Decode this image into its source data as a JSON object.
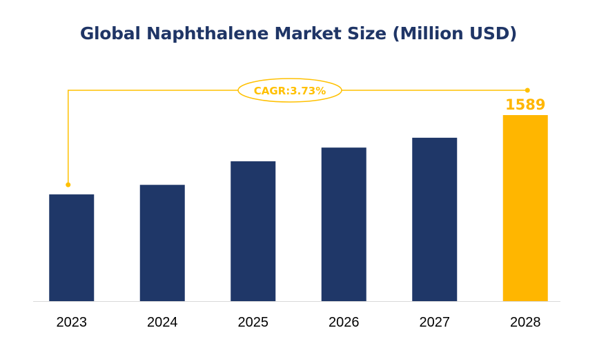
{
  "chart_data": {
    "type": "bar",
    "title": "Global Naphthalene Market Size (Million USD)",
    "categories": [
      "2023",
      "2024",
      "2025",
      "2026",
      "2027",
      "2028"
    ],
    "values": [
      1323,
      1355,
      1434,
      1480,
      1513,
      1589
    ],
    "ylim": [
      965,
      1589
    ],
    "xlabel": "",
    "ylabel": "",
    "grid": false,
    "data_labels": [
      {
        "category": "2028",
        "text": "1589"
      }
    ],
    "annotation": {
      "text": "CAGR:3.73%",
      "from": "2023",
      "to": "2028"
    },
    "colors": {
      "bar": "#1f3768",
      "highlight_bar": "#ffb600",
      "annotation": "#ffc000",
      "title": "#1f3566"
    }
  }
}
